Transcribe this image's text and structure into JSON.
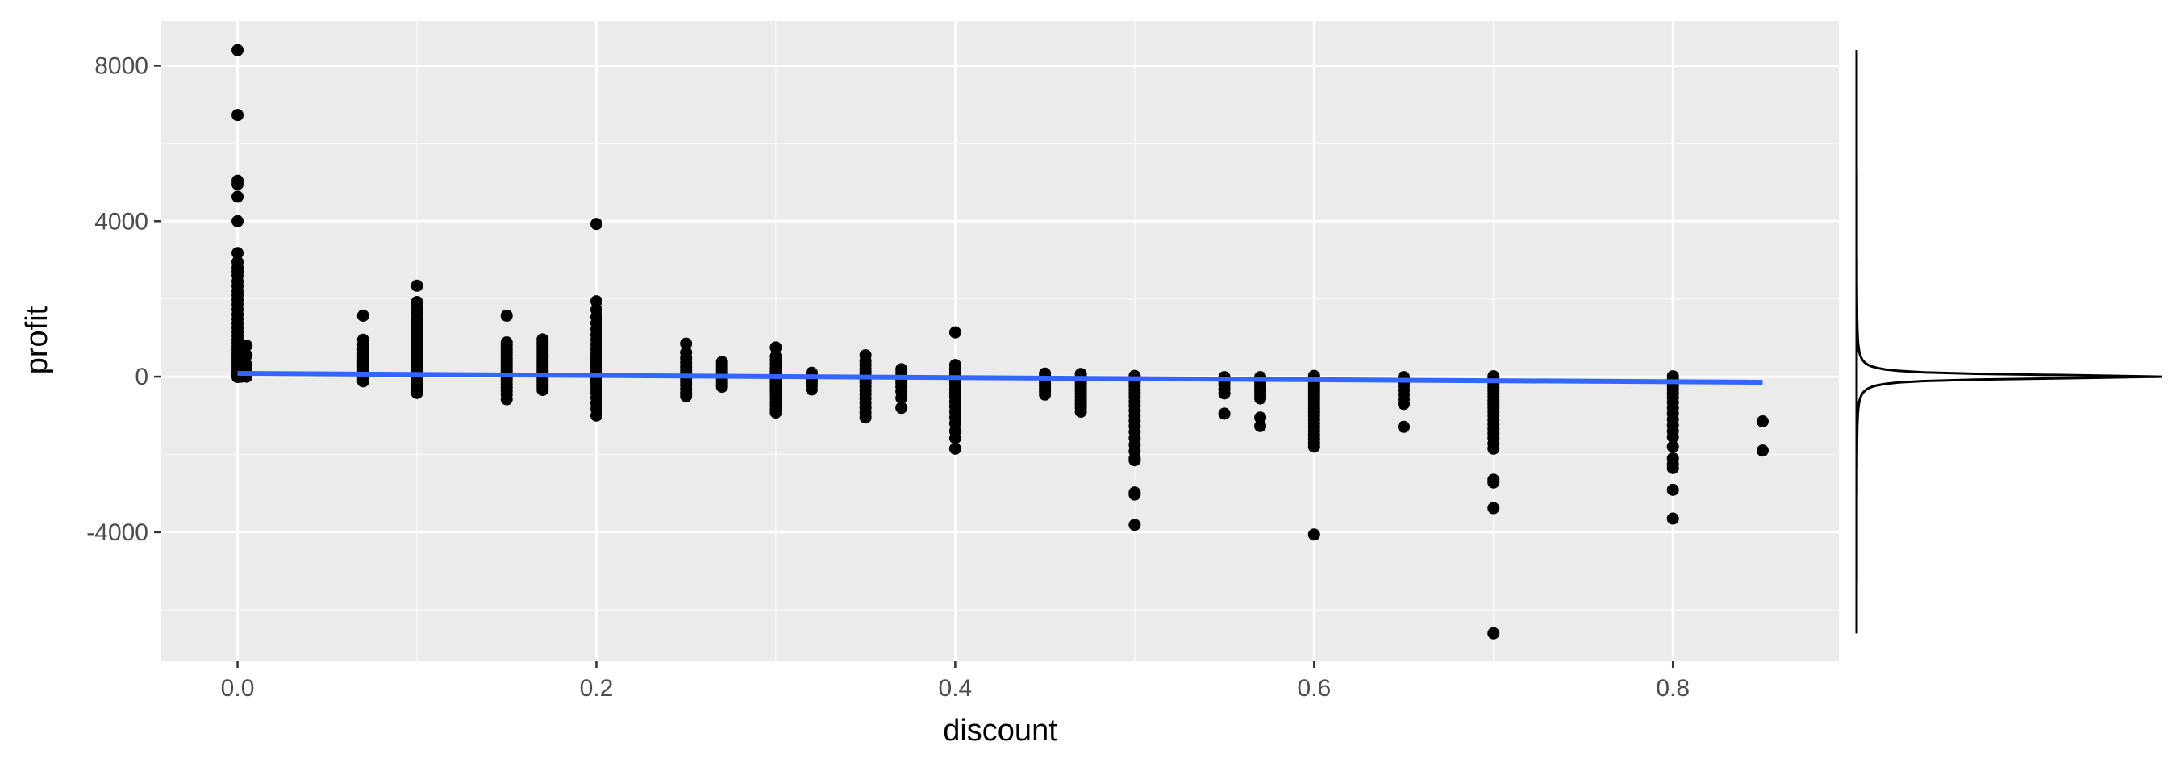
{
  "chart_data": {
    "type": "scatter",
    "xlabel": "discount",
    "ylabel": "profit",
    "xlim": [
      -0.0425,
      0.8925
    ],
    "ylim": [
      -7300,
      9150
    ],
    "x_ticks": [
      0.0,
      0.2,
      0.4,
      0.6,
      0.8
    ],
    "x_tick_labels": [
      "0.0",
      "0.2",
      "0.4",
      "0.6",
      "0.8"
    ],
    "y_ticks": [
      -4000,
      0,
      4000,
      8000
    ],
    "y_tick_labels": [
      "-4000",
      "0",
      "4000",
      "8000"
    ],
    "y_minor_ticks": [
      -6000,
      -2000,
      2000,
      6000
    ],
    "x_minor_ticks": [
      0.1,
      0.3,
      0.5,
      0.7
    ],
    "grid": true,
    "point_color": "#000000",
    "panel_color": "#ebebeb",
    "trend_color": "#3366ff",
    "trend_line": {
      "x": [
        0.0,
        0.85
      ],
      "y": [
        85,
        -145
      ]
    },
    "marginal_density": {
      "side": "right",
      "peak_y": 0,
      "spread": 60,
      "y_range": [
        -6600,
        8400
      ]
    },
    "groups": [
      {
        "x": 0.0,
        "y": [
          8400,
          6730,
          5040,
          4950,
          4630,
          4000,
          3180,
          2950,
          2800,
          2700,
          2600,
          2450,
          2330,
          2200,
          2100,
          1980,
          1850,
          1730,
          1600,
          1480,
          1370,
          1260,
          1150,
          1050,
          950,
          870,
          780,
          700,
          620,
          560,
          500,
          440,
          380,
          320,
          260,
          200,
          150,
          100,
          50,
          10,
          -10
        ]
      },
      {
        "x": 0.002,
        "y": [
          600,
          450,
          350,
          250,
          150,
          60,
          0
        ]
      },
      {
        "x": 0.005,
        "y": [
          800,
          550,
          300,
          100,
          0
        ]
      },
      {
        "x": 0.07,
        "y": [
          1570,
          950,
          820,
          700,
          600,
          520,
          440,
          380,
          320,
          260,
          200,
          140,
          90,
          40,
          -20,
          -80,
          -120
        ]
      },
      {
        "x": 0.1,
        "y": [
          2340,
          1920,
          1780,
          1640,
          1500,
          1380,
          1260,
          1160,
          1060,
          960,
          870,
          790,
          710,
          630,
          560,
          490,
          420,
          360,
          300,
          240,
          180,
          120,
          60,
          0,
          -60,
          -130,
          -200,
          -280,
          -350,
          -420
        ]
      },
      {
        "x": 0.15,
        "y": [
          1570,
          880,
          820,
          750,
          680,
          610,
          540,
          480,
          420,
          360,
          300,
          240,
          180,
          120,
          60,
          0,
          -60,
          -120,
          -200,
          -280,
          -360,
          -460,
          -580
        ]
      },
      {
        "x": 0.17,
        "y": [
          960,
          880,
          800,
          720,
          640,
          560,
          490,
          420,
          350,
          280,
          210,
          140,
          70,
          0,
          -60,
          -130,
          -200,
          -270,
          -340
        ]
      },
      {
        "x": 0.2,
        "y": [
          3930,
          1940,
          1720,
          1540,
          1380,
          1220,
          1080,
          950,
          830,
          720,
          620,
          530,
          450,
          370,
          300,
          230,
          160,
          100,
          40,
          -20,
          -80,
          -150,
          -230,
          -320,
          -420,
          -540,
          -680,
          -830,
          -1000
        ]
      },
      {
        "x": 0.25,
        "y": [
          850,
          620,
          480,
          360,
          260,
          170,
          90,
          20,
          -50,
          -130,
          -220,
          -320,
          -420,
          -500
        ]
      },
      {
        "x": 0.27,
        "y": [
          380,
          320,
          260,
          200,
          140,
          80,
          20,
          -40,
          -100,
          -160,
          -220,
          -260
        ]
      },
      {
        "x": 0.3,
        "y": [
          750,
          520,
          420,
          320,
          230,
          150,
          80,
          10,
          -60,
          -140,
          -220,
          -300,
          -380,
          -460,
          -550,
          -650,
          -740,
          -840,
          -920
        ]
      },
      {
        "x": 0.32,
        "y": [
          100,
          40,
          -20,
          -90,
          -160,
          -240,
          -330
        ]
      },
      {
        "x": 0.35,
        "y": [
          550,
          400,
          300,
          200,
          110,
          30,
          -60,
          -150,
          -250,
          -350,
          -450,
          -560,
          -680,
          -800,
          -920,
          -1050
        ]
      },
      {
        "x": 0.37,
        "y": [
          190,
          100,
          20,
          -70,
          -160,
          -260,
          -380,
          -550,
          -800
        ]
      },
      {
        "x": 0.4,
        "y": [
          1140,
          300,
          200,
          110,
          30,
          -50,
          -130,
          -220,
          -320,
          -420,
          -520,
          -640,
          -760,
          -900,
          -1050,
          -1200,
          -1400,
          -1580,
          -1850
        ]
      },
      {
        "x": 0.45,
        "y": [
          80,
          20,
          -40,
          -100,
          -170,
          -240,
          -310,
          -380,
          -460
        ]
      },
      {
        "x": 0.47,
        "y": [
          70,
          10,
          -50,
          -120,
          -190,
          -270,
          -350,
          -430,
          -520,
          -610,
          -700,
          -800,
          -900
        ]
      },
      {
        "x": 0.5,
        "y": [
          20,
          -60,
          -150,
          -240,
          -330,
          -430,
          -530,
          -640,
          -750,
          -870,
          -1000,
          -1130,
          -1270,
          -1420,
          -1580,
          -1750,
          -1920,
          -2100,
          -2150,
          -2980,
          -3030,
          -3810
        ]
      },
      {
        "x": 0.55,
        "y": [
          -10,
          -70,
          -140,
          -220,
          -320,
          -430,
          -950
        ]
      },
      {
        "x": 0.57,
        "y": [
          -10,
          -70,
          -140,
          -220,
          -300,
          -380,
          -480,
          -560,
          -1050,
          -1270
        ]
      },
      {
        "x": 0.6,
        "y": [
          20,
          -50,
          -120,
          -190,
          -260,
          -330,
          -400,
          -480,
          -560,
          -640,
          -730,
          -820,
          -910,
          -1000,
          -1100,
          -1200,
          -1300,
          -1400,
          -1500,
          -1600,
          -1700,
          -1800,
          -4060
        ]
      },
      {
        "x": 0.65,
        "y": [
          -10,
          -80,
          -160,
          -250,
          -350,
          -460,
          -580,
          -700,
          -1290
        ]
      },
      {
        "x": 0.7,
        "y": [
          10,
          -60,
          -130,
          -200,
          -280,
          -360,
          -440,
          -520,
          -610,
          -700,
          -800,
          -900,
          -1000,
          -1110,
          -1220,
          -1340,
          -1460,
          -1580,
          -1720,
          -1850,
          -2650,
          -2720,
          -3380,
          -6600
        ]
      },
      {
        "x": 0.8,
        "y": [
          10,
          -70,
          -150,
          -240,
          -330,
          -430,
          -540,
          -660,
          -800,
          -950,
          -1100,
          -1250,
          -1400,
          -1550,
          -1800,
          -2100,
          -2250,
          -2350,
          -2910,
          -3650
        ]
      },
      {
        "x": 0.85,
        "y": [
          -1150,
          -1900
        ]
      }
    ]
  }
}
